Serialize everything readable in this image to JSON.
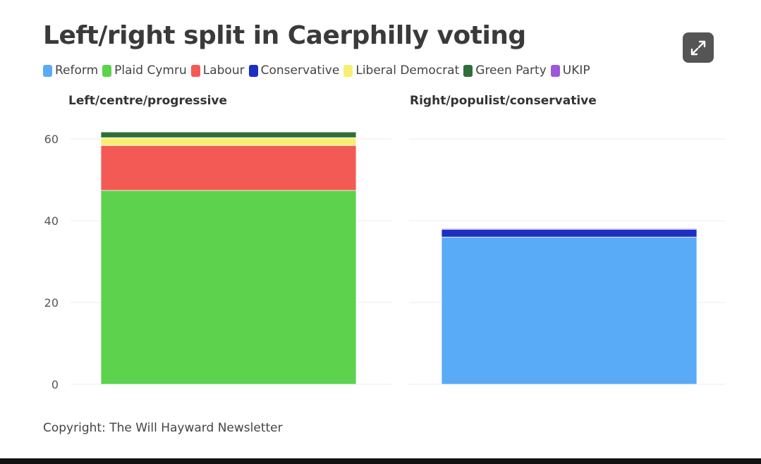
{
  "title": "Left/right split in Caerphilly voting",
  "footer": "Copyright: The Will Hayward Newsletter",
  "colors": {
    "Reform": "#5aabf7",
    "Plaid Cymru": "#5cd24d",
    "Labour": "#f45a55",
    "Conservative": "#1c2ec4",
    "Liberal Democrat": "#f7ef72",
    "Green Party": "#2f6e3b",
    "UKIP": "#9b59d9"
  },
  "chart_data": {
    "type": "bar",
    "stacked": true,
    "title": "Left/right split in Caerphilly voting",
    "panels": [
      "Left/centre/progressive",
      "Right/populist/conservative"
    ],
    "categories": [
      "Left/centre/progressive",
      "Right/populist/conservative"
    ],
    "series": [
      {
        "name": "Reform",
        "values": [
          0,
          36
        ]
      },
      {
        "name": "Plaid Cymru",
        "values": [
          47.4,
          0
        ]
      },
      {
        "name": "Labour",
        "values": [
          11,
          0
        ]
      },
      {
        "name": "Conservative",
        "values": [
          0,
          1.9
        ]
      },
      {
        "name": "Liberal Democrat",
        "values": [
          1.9,
          0
        ]
      },
      {
        "name": "Green Party",
        "values": [
          1.4,
          0
        ]
      },
      {
        "name": "UKIP",
        "values": [
          0,
          0.2
        ]
      }
    ],
    "yticks": [
      0,
      20,
      40,
      60
    ],
    "ylim": [
      0,
      62
    ],
    "xlabel": "",
    "ylabel": "",
    "legend": "top-left",
    "grid": true
  }
}
